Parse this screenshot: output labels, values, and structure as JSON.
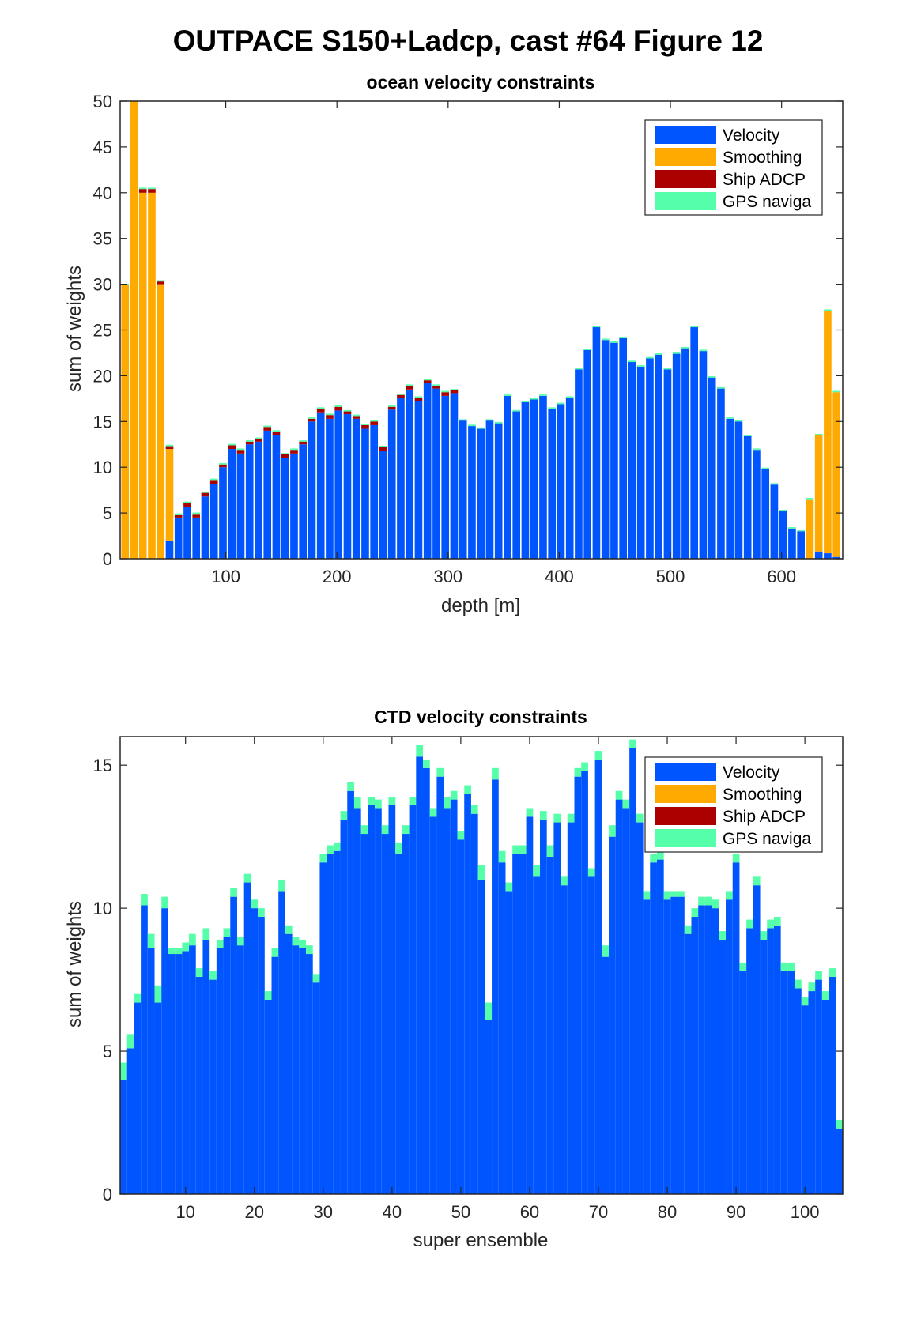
{
  "figure": {
    "suptitle": "OUTPACE S150+Ladcp, cast #64  Figure 12"
  },
  "colors": {
    "Velocity": "#0055ff",
    "Smoothing": "#ffaa00",
    "Ship ADCP": "#aa0000",
    "GPS naviga": "#55ffaa"
  },
  "chart_data": [
    {
      "type": "bar",
      "stacked": true,
      "title": "ocean velocity constraints",
      "xlabel": "depth [m]",
      "ylabel": "sum of weights",
      "xlim": [
        5,
        655
      ],
      "ylim": [
        0,
        50
      ],
      "xticks": [
        100,
        200,
        300,
        400,
        500,
        600
      ],
      "yticks": [
        0,
        5,
        10,
        15,
        20,
        25,
        30,
        35,
        40,
        45,
        50
      ],
      "legend": {
        "placement": "top-right",
        "entries": [
          "Velocity",
          "Smoothing",
          "Ship ADCP",
          "GPS naviga"
        ]
      },
      "bin_width": 8,
      "x": [
        10,
        18,
        26,
        34,
        42,
        50,
        58,
        66,
        74,
        82,
        90,
        98,
        106,
        114,
        122,
        130,
        138,
        146,
        154,
        162,
        170,
        178,
        186,
        194,
        202,
        210,
        218,
        226,
        234,
        242,
        250,
        258,
        266,
        274,
        282,
        290,
        298,
        306,
        314,
        322,
        330,
        338,
        346,
        354,
        362,
        370,
        378,
        386,
        394,
        402,
        410,
        418,
        426,
        434,
        442,
        450,
        458,
        466,
        474,
        482,
        490,
        498,
        506,
        514,
        522,
        530,
        538,
        546,
        554,
        562,
        570,
        578,
        586,
        594,
        602,
        610,
        618,
        626,
        634,
        642,
        650
      ],
      "series": [
        {
          "name": "Velocity",
          "values": [
            0,
            0,
            0,
            0,
            0,
            2,
            4.5,
            5.7,
            4.5,
            6.8,
            8.2,
            10,
            12,
            11.5,
            12.5,
            12.8,
            14,
            13.5,
            11,
            11.5,
            12.5,
            15,
            16,
            15.3,
            16.2,
            15.8,
            15.3,
            14.2,
            14.6,
            11.8,
            16.3,
            17.6,
            18.5,
            17.2,
            19.2,
            18.6,
            17.8,
            18.1,
            15.1,
            14.5,
            14.2,
            15.1,
            14.8,
            17.8,
            16.1,
            17.1,
            17.4,
            17.8,
            16.4,
            16.9,
            17.6,
            20.7,
            22.8,
            25.3,
            23.9,
            23.6,
            24.1,
            21.5,
            21,
            21.9,
            22.3,
            20.7,
            22.4,
            23,
            25.3,
            22.7,
            19.8,
            18.6,
            15.3,
            15,
            13.4,
            11.9,
            9.8,
            8.1,
            5.2,
            3.3,
            3,
            0,
            0.8,
            0.6,
            0.2
          ]
        },
        {
          "name": "Smoothing",
          "values": [
            29.9,
            50,
            40,
            40,
            30,
            10,
            0,
            0,
            0,
            0,
            0,
            0,
            0,
            0,
            0,
            0,
            0,
            0,
            0,
            0,
            0,
            0,
            0,
            0,
            0,
            0,
            0,
            0,
            0,
            0,
            0,
            0,
            0,
            0,
            0,
            0,
            0,
            0,
            0,
            0,
            0,
            0,
            0,
            0,
            0,
            0,
            0,
            0,
            0,
            0,
            0,
            0,
            0,
            0,
            0,
            0,
            0,
            0,
            0,
            0,
            0,
            0,
            0,
            0,
            0,
            0,
            0,
            0,
            0,
            0,
            0,
            0,
            0,
            0,
            0,
            0,
            0,
            6.5,
            12.7,
            26.5,
            18
          ]
        },
        {
          "name": "Ship ADCP",
          "values": [
            0,
            0,
            0.4,
            0.4,
            0.3,
            0.3,
            0.3,
            0.4,
            0.4,
            0.4,
            0.4,
            0.3,
            0.4,
            0.4,
            0.3,
            0.3,
            0.4,
            0.4,
            0.4,
            0.4,
            0.3,
            0.3,
            0.4,
            0.4,
            0.4,
            0.3,
            0.3,
            0.4,
            0.4,
            0.4,
            0.3,
            0.3,
            0.4,
            0.4,
            0.3,
            0.3,
            0.4,
            0.3,
            0,
            0,
            0,
            0,
            0,
            0,
            0,
            0,
            0,
            0,
            0,
            0,
            0,
            0,
            0,
            0,
            0,
            0,
            0,
            0,
            0,
            0,
            0,
            0,
            0,
            0,
            0,
            0,
            0,
            0,
            0,
            0,
            0,
            0,
            0,
            0,
            0,
            0,
            0,
            0,
            0,
            0,
            0
          ]
        },
        {
          "name": "GPS naviga",
          "values": [
            0.15,
            0.15,
            0.15,
            0.15,
            0.15,
            0.15,
            0.15,
            0.15,
            0.15,
            0.15,
            0.15,
            0.15,
            0.15,
            0.15,
            0.15,
            0.15,
            0.15,
            0.15,
            0.15,
            0.15,
            0.15,
            0.15,
            0.15,
            0.15,
            0.15,
            0.15,
            0.15,
            0.15,
            0.15,
            0.15,
            0.15,
            0.15,
            0.15,
            0.15,
            0.15,
            0.15,
            0.15,
            0.15,
            0.15,
            0.15,
            0.15,
            0.15,
            0.15,
            0.15,
            0.15,
            0.15,
            0.15,
            0.15,
            0.15,
            0.15,
            0.15,
            0.15,
            0.15,
            0.15,
            0.15,
            0.15,
            0.15,
            0.15,
            0.15,
            0.15,
            0.15,
            0.15,
            0.15,
            0.15,
            0.15,
            0.15,
            0.15,
            0.15,
            0.15,
            0.15,
            0.15,
            0.15,
            0.15,
            0.15,
            0.15,
            0.15,
            0.15,
            0.15,
            0.15,
            0.15,
            0.15
          ]
        }
      ]
    },
    {
      "type": "bar",
      "stacked": true,
      "title": "CTD velocity constraints",
      "xlabel": "super ensemble",
      "ylabel": "sum of weights",
      "xlim": [
        0.5,
        105.5
      ],
      "ylim": [
        0,
        16
      ],
      "xticks": [
        10,
        20,
        30,
        40,
        50,
        60,
        70,
        80,
        90,
        100
      ],
      "yticks": [
        0,
        5,
        10,
        15
      ],
      "legend": {
        "placement": "top-right",
        "entries": [
          "Velocity",
          "Smoothing",
          "Ship ADCP",
          "GPS naviga"
        ]
      },
      "bin_width": 1,
      "x": [
        1,
        2,
        3,
        4,
        5,
        6,
        7,
        8,
        9,
        10,
        11,
        12,
        13,
        14,
        15,
        16,
        17,
        18,
        19,
        20,
        21,
        22,
        23,
        24,
        25,
        26,
        27,
        28,
        29,
        30,
        31,
        32,
        33,
        34,
        35,
        36,
        37,
        38,
        39,
        40,
        41,
        42,
        43,
        44,
        45,
        46,
        47,
        48,
        49,
        50,
        51,
        52,
        53,
        54,
        55,
        56,
        57,
        58,
        59,
        60,
        61,
        62,
        63,
        64,
        65,
        66,
        67,
        68,
        69,
        70,
        71,
        72,
        73,
        74,
        75,
        76,
        77,
        78,
        79,
        80,
        81,
        82,
        83,
        84,
        85,
        86,
        87,
        88,
        89,
        90,
        91,
        92,
        93,
        94,
        95,
        96,
        97,
        98,
        99,
        100,
        101,
        102,
        103,
        104,
        105
      ],
      "series": [
        {
          "name": "Velocity",
          "values": [
            4.0,
            5.1,
            6.7,
            10.1,
            8.6,
            6.7,
            10.0,
            8.4,
            8.4,
            8.5,
            8.7,
            7.6,
            8.9,
            7.5,
            8.6,
            9.0,
            10.4,
            8.7,
            10.9,
            10.0,
            9.7,
            6.8,
            8.3,
            10.6,
            9.1,
            8.7,
            8.6,
            8.4,
            7.4,
            11.6,
            11.9,
            12.0,
            13.1,
            14.1,
            13.5,
            12.6,
            13.6,
            13.5,
            12.6,
            13.6,
            11.9,
            12.6,
            13.6,
            15.3,
            14.9,
            13.2,
            14.6,
            13.5,
            13.8,
            12.4,
            14.0,
            13.3,
            11.0,
            6.1,
            14.5,
            11.6,
            10.6,
            11.9,
            11.9,
            13.2,
            11.1,
            13.1,
            11.8,
            13.0,
            10.8,
            13.0,
            14.6,
            14.8,
            11.1,
            15.2,
            8.3,
            12.5,
            13.8,
            13.5,
            15.6,
            13.0,
            10.3,
            11.6,
            11.7,
            10.3,
            10.4,
            10.4,
            9.1,
            9.7,
            10.1,
            10.1,
            10.0,
            8.9,
            10.3,
            11.6,
            7.8,
            9.3,
            10.8,
            8.9,
            9.3,
            9.4,
            7.8,
            7.8,
            7.2,
            6.6,
            7.1,
            7.5,
            6.8,
            7.6,
            2.3
          ]
        },
        {
          "name": "Smoothing",
          "values": [
            0,
            0,
            0,
            0,
            0,
            0,
            0,
            0,
            0,
            0,
            0,
            0,
            0,
            0,
            0,
            0,
            0,
            0,
            0,
            0,
            0,
            0,
            0,
            0,
            0,
            0,
            0,
            0,
            0,
            0,
            0,
            0,
            0,
            0,
            0,
            0,
            0,
            0,
            0,
            0,
            0,
            0,
            0,
            0,
            0,
            0,
            0,
            0,
            0,
            0,
            0,
            0,
            0,
            0,
            0,
            0,
            0,
            0,
            0,
            0,
            0,
            0,
            0,
            0,
            0,
            0,
            0,
            0,
            0,
            0,
            0,
            0,
            0,
            0,
            0,
            0,
            0,
            0,
            0,
            0,
            0,
            0,
            0,
            0,
            0,
            0,
            0,
            0,
            0,
            0,
            0,
            0,
            0,
            0,
            0,
            0,
            0,
            0,
            0,
            0,
            0,
            0,
            0,
            0,
            0
          ]
        },
        {
          "name": "Ship ADCP",
          "values": [
            0,
            0,
            0,
            0,
            0,
            0,
            0,
            0,
            0,
            0,
            0,
            0,
            0,
            0,
            0,
            0,
            0,
            0,
            0,
            0,
            0,
            0,
            0,
            0,
            0,
            0,
            0,
            0,
            0,
            0,
            0,
            0,
            0,
            0,
            0,
            0,
            0,
            0,
            0,
            0,
            0,
            0,
            0,
            0,
            0,
            0,
            0,
            0,
            0,
            0,
            0,
            0,
            0,
            0,
            0,
            0,
            0,
            0,
            0,
            0,
            0,
            0,
            0,
            0,
            0,
            0,
            0,
            0,
            0,
            0,
            0,
            0,
            0,
            0,
            0,
            0,
            0,
            0,
            0,
            0,
            0,
            0,
            0,
            0,
            0,
            0,
            0,
            0,
            0,
            0,
            0,
            0,
            0,
            0,
            0,
            0,
            0,
            0,
            0,
            0,
            0,
            0,
            0,
            0,
            0
          ]
        },
        {
          "name": "GPS naviga",
          "values": [
            0.6,
            0.5,
            0.3,
            0.4,
            0.5,
            0.6,
            0.4,
            0.2,
            0.2,
            0.3,
            0.4,
            0.3,
            0.4,
            0.3,
            0.3,
            0.3,
            0.3,
            0.3,
            0.3,
            0.3,
            0.3,
            0.3,
            0.3,
            0.4,
            0.3,
            0.3,
            0.3,
            0.3,
            0.3,
            0.3,
            0.3,
            0.3,
            0.3,
            0.3,
            0.4,
            0.3,
            0.3,
            0.3,
            0.3,
            0.3,
            0.4,
            0.3,
            0.3,
            0.4,
            0.3,
            0.3,
            0.3,
            0.4,
            0.3,
            0.3,
            0.3,
            0.3,
            0.5,
            0.6,
            0.4,
            0.4,
            0.3,
            0.3,
            0.3,
            0.3,
            0.4,
            0.3,
            0.4,
            0.3,
            0.3,
            0.3,
            0.3,
            0.3,
            0.3,
            0.3,
            0.4,
            0.4,
            0.3,
            0.3,
            0.3,
            0.3,
            0.3,
            0.3,
            0.3,
            0.3,
            0.2,
            0.2,
            0.3,
            0.3,
            0.3,
            0.3,
            0.3,
            0.3,
            0.3,
            0.3,
            0.3,
            0.3,
            0.3,
            0.3,
            0.3,
            0.3,
            0.3,
            0.3,
            0.3,
            0.3,
            0.3,
            0.3,
            0.3,
            0.3,
            0.3
          ]
        }
      ]
    }
  ]
}
